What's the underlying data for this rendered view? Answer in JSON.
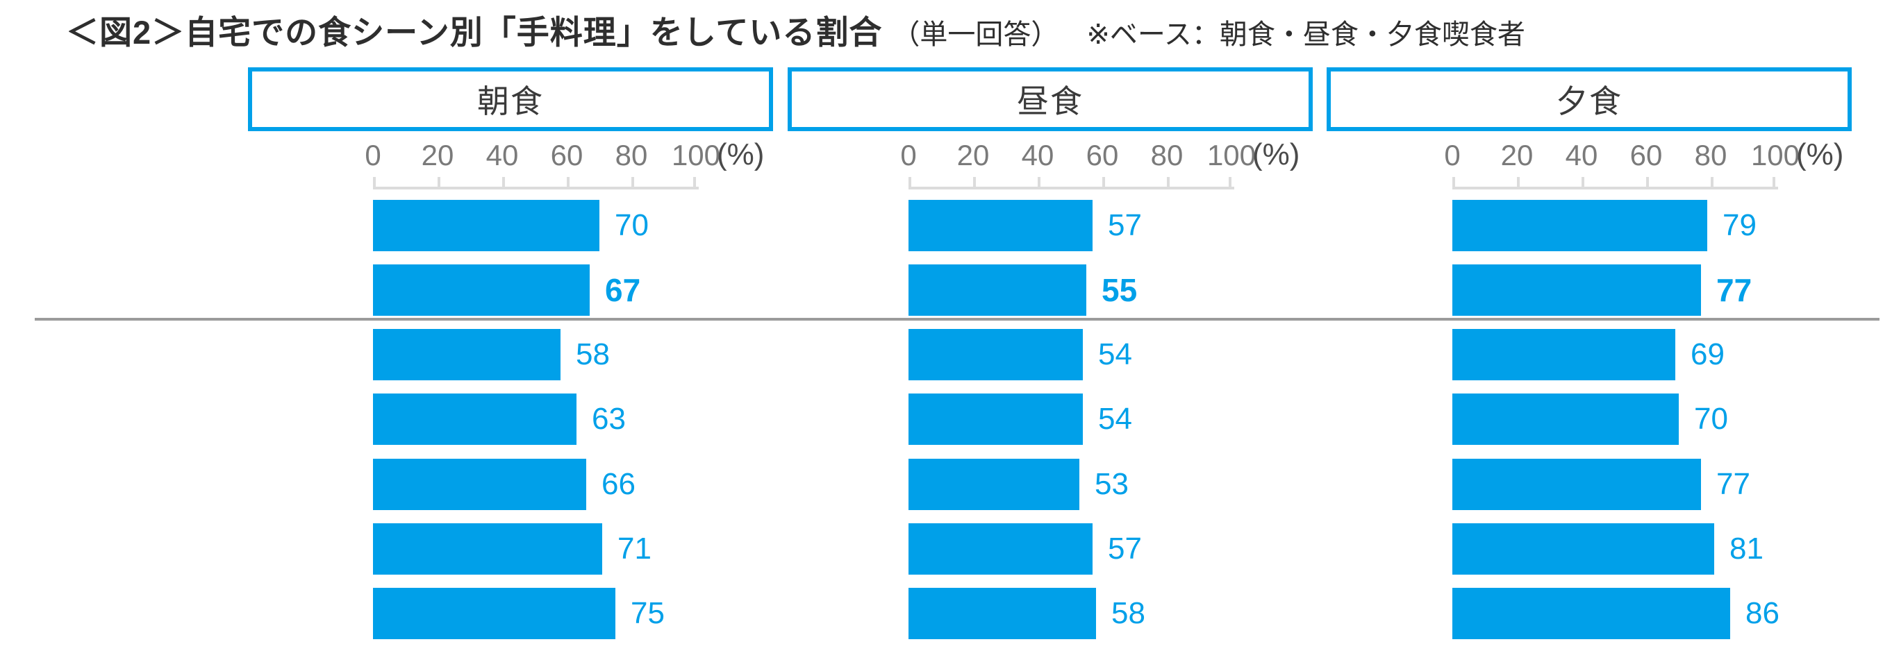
{
  "title": {
    "main": "＜図2＞自宅での食シーン別「手料理」をしている割合",
    "sub": "（単一回答）",
    "note": "※ベース：朝食・昼食・夕食喫食者"
  },
  "axis": {
    "tick_labels": [
      "0",
      "20",
      "40",
      "60",
      "80",
      "100"
    ],
    "unit": "(%)"
  },
  "colors": {
    "bar_blue": "#00a0e9",
    "header_border_blue": "#00a0e9",
    "value_label_blue": "#00a0e9",
    "axis_line_gray": "#dcdcdc",
    "tick_label_gray": "#7a7a7a",
    "separator_gray": "#9b9b9b",
    "title_text": "#2e2e2e"
  },
  "chart_data": {
    "type": "bar",
    "orientation": "horizontal",
    "title": "＜図2＞自宅での食シーン別「手料理」をしている割合（単一回答）",
    "note": "※ベース：朝食・昼食・夕食喫食者",
    "xlim": [
      0,
      100
    ],
    "x_ticks": [
      0,
      20,
      40,
      60,
      80,
      100
    ],
    "unit": "%",
    "legend_position": "none",
    "grid": false,
    "groups": [
      {
        "label": "朝食",
        "values": [
          70,
          67,
          58,
          63,
          66,
          71,
          75
        ]
      },
      {
        "label": "昼食",
        "values": [
          57,
          55,
          54,
          54,
          53,
          57,
          58
        ]
      },
      {
        "label": "夕食",
        "values": [
          79,
          77,
          69,
          70,
          77,
          81,
          86
        ]
      }
    ],
    "bold_value_row_index": 1,
    "separator_after_row_index": 1,
    "row_labels_visible": false
  }
}
